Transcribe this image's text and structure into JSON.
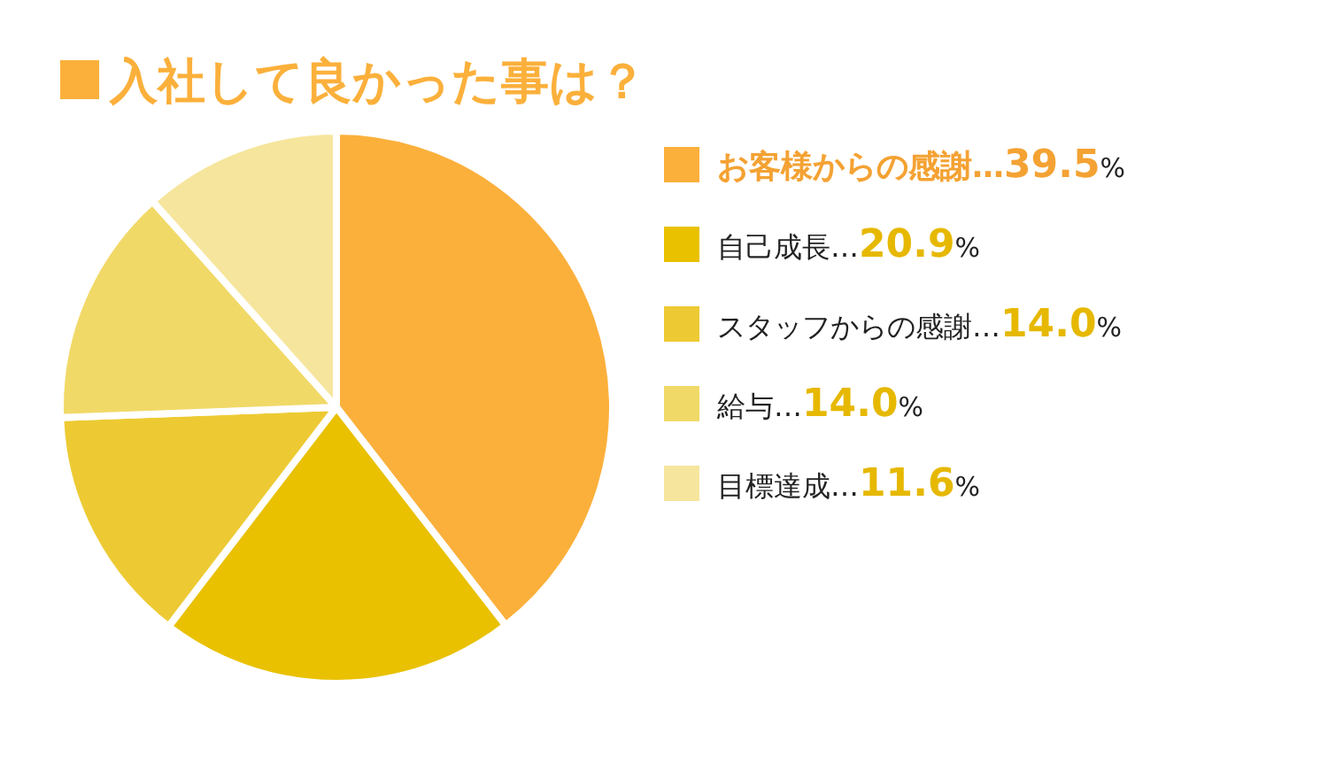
{
  "chart_data": {
    "type": "pie",
    "title": "入社して良かった事は？",
    "categories": [
      "お客様からの感謝",
      "自己成長",
      "スタッフからの感謝",
      "給与",
      "目標達成"
    ],
    "values": [
      39.5,
      20.9,
      14.0,
      14.0,
      11.6
    ],
    "colors": [
      "#fbb03b",
      "#e9c100",
      "#edca33",
      "#f1d968",
      "#f6e59c"
    ],
    "value_labels": [
      "…39.5%",
      "…20.9%",
      "…14.0%",
      "…14.0%",
      "…11.6%"
    ],
    "legend": "right"
  }
}
